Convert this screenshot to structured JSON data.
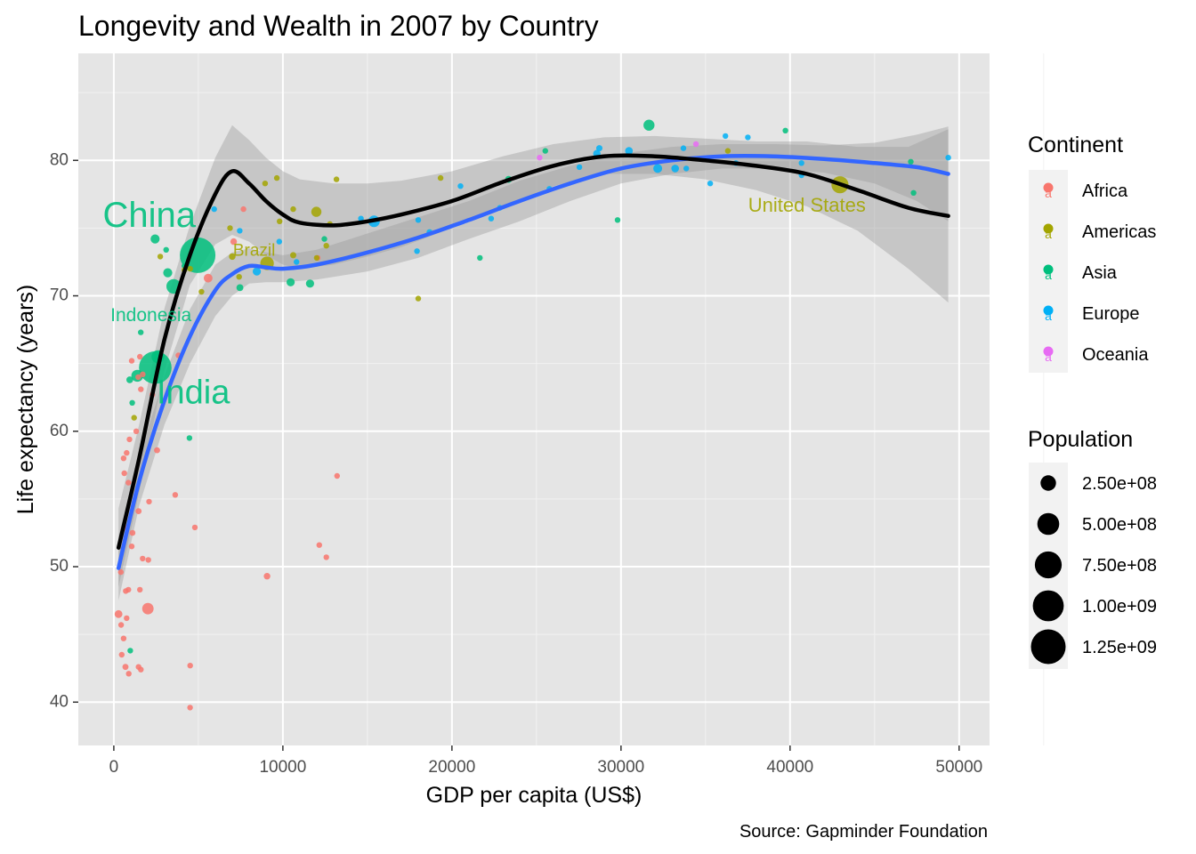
{
  "chart_data": {
    "type": "scatter",
    "title": "Longevity and Wealth in 2007 by Country",
    "xlabel": "GDP per capita (US$)",
    "ylabel": "Life expectancy (years)",
    "caption": "Source: Gapminder Foundation",
    "xlim": [
      -2100,
      51800
    ],
    "ylim": [
      36.8,
      87.9
    ],
    "x_ticks": [
      0,
      10000,
      20000,
      30000,
      40000,
      50000
    ],
    "y_ticks": [
      40,
      50,
      60,
      70,
      80
    ],
    "x_tick_labels": [
      "0",
      "10000",
      "20000",
      "30000",
      "40000",
      "50000"
    ],
    "y_tick_labels": [
      "40",
      "50",
      "60",
      "70",
      "80"
    ],
    "grid": true,
    "background": "#e5e5e5",
    "continents": [
      {
        "name": "Africa",
        "color": "#f8766d"
      },
      {
        "name": "Americas",
        "color": "#a3a500"
      },
      {
        "name": "Asia",
        "color": "#00bf7d"
      },
      {
        "name": "Europe",
        "color": "#00b0f6"
      },
      {
        "name": "Oceania",
        "color": "#e76bf3"
      }
    ],
    "legend_color_title": "Continent",
    "legend_size_title": "Population",
    "legend_key_glyph": "a",
    "size_breaks": [
      250000000,
      500000000,
      750000000,
      1000000000,
      1250000000
    ],
    "size_labels": [
      "2.50e+08",
      "5.00e+08",
      "7.50e+08",
      "1.00e+09",
      "1.25e+09"
    ],
    "points": [
      {
        "x": 4959,
        "y": 73.0,
        "c": "Asia",
        "p": 1318000000
      },
      {
        "x": 2452,
        "y": 64.7,
        "c": "Asia",
        "p": 1110000000
      },
      {
        "x": 42951,
        "y": 78.2,
        "c": "Americas",
        "p": 301000000
      },
      {
        "x": 3541,
        "y": 70.7,
        "c": "Asia",
        "p": 224000000
      },
      {
        "x": 9066,
        "y": 72.4,
        "c": "Americas",
        "p": 190000000
      },
      {
        "x": 2606,
        "y": 65.5,
        "c": "Asia",
        "p": 169000000
      },
      {
        "x": 1391,
        "y": 64.1,
        "c": "Asia",
        "p": 150000000
      },
      {
        "x": 2014,
        "y": 46.9,
        "c": "Africa",
        "p": 135000000
      },
      {
        "x": 31656,
        "y": 82.6,
        "c": "Asia",
        "p": 127000000
      },
      {
        "x": 11978,
        "y": 76.2,
        "c": "Americas",
        "p": 108000000
      },
      {
        "x": 15391,
        "y": 75.5,
        "c": "Europe",
        "p": 141000000
      },
      {
        "x": 32170,
        "y": 79.4,
        "c": "Europe",
        "p": 82400000
      },
      {
        "x": 30470,
        "y": 80.7,
        "c": "Europe",
        "p": 61100000
      },
      {
        "x": 33203,
        "y": 79.4,
        "c": "Europe",
        "p": 61000000
      },
      {
        "x": 28570,
        "y": 80.5,
        "c": "Europe",
        "p": 58100000
      },
      {
        "x": 8458,
        "y": 71.8,
        "c": "Europe",
        "p": 71200000
      },
      {
        "x": 3190,
        "y": 71.7,
        "c": "Asia",
        "p": 87000000
      },
      {
        "x": 5581,
        "y": 71.3,
        "c": "Africa",
        "p": 80200000
      },
      {
        "x": 7092,
        "y": 74.0,
        "c": "Africa",
        "p": 43997828
      },
      {
        "x": 690,
        "y": 42.6,
        "c": "Africa",
        "p": 38139640
      },
      {
        "x": 9065,
        "y": 49.3,
        "c": "Africa",
        "p": 43997828
      },
      {
        "x": 1463,
        "y": 54.1,
        "c": "Africa",
        "p": 38139640
      },
      {
        "x": 2557,
        "y": 58.6,
        "c": "Africa",
        "p": 38139640
      },
      {
        "x": 4515,
        "y": 42.7,
        "c": "Africa",
        "p": 19951656
      },
      {
        "x": 277,
        "y": 46.5,
        "c": "Africa",
        "p": 64606759
      },
      {
        "x": 10613,
        "y": 73.0,
        "c": "Americas",
        "p": 40301927
      },
      {
        "x": 7006,
        "y": 72.9,
        "c": "Americas",
        "p": 44227550
      },
      {
        "x": 36319,
        "y": 80.7,
        "c": "Americas",
        "p": 33390141
      },
      {
        "x": 12779,
        "y": 75.3,
        "c": "Americas",
        "p": 28674757
      },
      {
        "x": 7409,
        "y": 71.4,
        "c": "Americas",
        "p": 28000000
      },
      {
        "x": 1201,
        "y": 61.0,
        "c": "Americas",
        "p": 8500000
      },
      {
        "x": 4172,
        "y": 72.2,
        "c": "Asia",
        "p": 26000000
      },
      {
        "x": 3095,
        "y": 73.4,
        "c": "Asia",
        "p": 25000000
      },
      {
        "x": 2442,
        "y": 74.2,
        "c": "Asia",
        "p": 85262356
      },
      {
        "x": 1091,
        "y": 62.1,
        "c": "Asia",
        "p": 28901790
      },
      {
        "x": 944,
        "y": 63.8,
        "c": "Asia",
        "p": 47761980
      },
      {
        "x": 1593,
        "y": 67.3,
        "c": "Asia",
        "p": 23301725
      },
      {
        "x": 4472,
        "y": 59.5,
        "c": "Asia",
        "p": 22000000
      },
      {
        "x": 974,
        "y": 43.8,
        "c": "Asia",
        "p": 31889923
      },
      {
        "x": 47143,
        "y": 79.9,
        "c": "Asia",
        "p": 9000000
      },
      {
        "x": 39725,
        "y": 82.2,
        "c": "Asia",
        "p": 7000000
      },
      {
        "x": 25523,
        "y": 80.7,
        "c": "Asia",
        "p": 6426679
      },
      {
        "x": 29796,
        "y": 75.6,
        "c": "Asia",
        "p": 4000000
      },
      {
        "x": 47306,
        "y": 77.6,
        "c": "Asia",
        "p": 5000000
      },
      {
        "x": 23348,
        "y": 78.6,
        "c": "Asia",
        "p": 49044790
      },
      {
        "x": 21654,
        "y": 72.8,
        "c": "Asia",
        "p": 27601038
      },
      {
        "x": 12452,
        "y": 74.2,
        "c": "Asia",
        "p": 24821286
      },
      {
        "x": 10461,
        "y": 71.0,
        "c": "Asia",
        "p": 69453570
      },
      {
        "x": 11606,
        "y": 70.9,
        "c": "Asia",
        "p": 70000000
      },
      {
        "x": 7458,
        "y": 70.6,
        "c": "Asia",
        "p": 50000000
      },
      {
        "x": 36180,
        "y": 81.8,
        "c": "Europe",
        "p": 4000000
      },
      {
        "x": 35278,
        "y": 78.3,
        "c": "Europe",
        "p": 5000000
      },
      {
        "x": 33692,
        "y": 80.9,
        "c": "Europe",
        "p": 9000000
      },
      {
        "x": 37506,
        "y": 81.7,
        "c": "Europe",
        "p": 7500000
      },
      {
        "x": 40676,
        "y": 79.8,
        "c": "Europe",
        "p": 10000000
      },
      {
        "x": 49357,
        "y": 80.2,
        "c": "Europe",
        "p": 4600000
      },
      {
        "x": 36797,
        "y": 79.8,
        "c": "Europe",
        "p": 8200000
      },
      {
        "x": 33860,
        "y": 79.4,
        "c": "Europe",
        "p": 16570613
      },
      {
        "x": 40676,
        "y": 78.9,
        "c": "Europe",
        "p": 4100000
      },
      {
        "x": 28718,
        "y": 80.9,
        "c": "Europe",
        "p": 40448191
      },
      {
        "x": 27538,
        "y": 79.5,
        "c": "Europe",
        "p": 10700000
      },
      {
        "x": 22833,
        "y": 76.5,
        "c": "Europe",
        "p": 10228744
      },
      {
        "x": 20510,
        "y": 78.1,
        "c": "Europe",
        "p": 10642836
      },
      {
        "x": 18009,
        "y": 75.6,
        "c": "Europe",
        "p": 5447502
      },
      {
        "x": 18678,
        "y": 74.7,
        "c": "Europe",
        "p": 38518241
      },
      {
        "x": 17936,
        "y": 73.3,
        "c": "Europe",
        "p": 10000000
      },
      {
        "x": 14619,
        "y": 75.7,
        "c": "Europe",
        "p": 4400000
      },
      {
        "x": 10808,
        "y": 72.5,
        "c": "Europe",
        "p": 22276056
      },
      {
        "x": 9787,
        "y": 74.0,
        "c": "Europe",
        "p": 7322858
      },
      {
        "x": 7446,
        "y": 74.8,
        "c": "Europe",
        "p": 3600000
      },
      {
        "x": 5937,
        "y": 76.4,
        "c": "Europe",
        "p": 3000000
      },
      {
        "x": 25768,
        "y": 77.9,
        "c": "Europe",
        "p": 5400000
      },
      {
        "x": 22316,
        "y": 75.7,
        "c": "Europe",
        "p": 2000000
      },
      {
        "x": 34435,
        "y": 81.2,
        "c": "Oceania",
        "p": 20434176
      },
      {
        "x": 25185,
        "y": 80.2,
        "c": "Oceania",
        "p": 4115771
      },
      {
        "x": 13172,
        "y": 78.6,
        "c": "Americas",
        "p": 4000000
      },
      {
        "x": 9645,
        "y": 78.7,
        "c": "Americas",
        "p": 4000000
      },
      {
        "x": 8948,
        "y": 78.3,
        "c": "Americas",
        "p": 11400000
      },
      {
        "x": 19329,
        "y": 78.7,
        "c": "Americas",
        "p": 3000000
      },
      {
        "x": 18009,
        "y": 69.8,
        "c": "Americas",
        "p": 1000000
      },
      {
        "x": 10611,
        "y": 76.4,
        "c": "Americas",
        "p": 3000000
      },
      {
        "x": 9809,
        "y": 75.5,
        "c": "Americas",
        "p": 3300000
      },
      {
        "x": 6873,
        "y": 75.0,
        "c": "Americas",
        "p": 9300000
      },
      {
        "x": 12570,
        "y": 73.7,
        "c": "Americas",
        "p": 26000000
      },
      {
        "x": 5186,
        "y": 70.3,
        "c": "Americas",
        "p": 9000000
      },
      {
        "x": 2749,
        "y": 72.9,
        "c": "Americas",
        "p": 5700000
      },
      {
        "x": 4173,
        "y": 71.9,
        "c": "Americas",
        "p": 6000000
      },
      {
        "x": 4515,
        "y": 72.0,
        "c": "Americas",
        "p": 13000000
      },
      {
        "x": 12000,
        "y": 72.8,
        "c": "Americas",
        "p": 3000000
      },
      {
        "x": 3820,
        "y": 65.6,
        "c": "Africa",
        "p": 3000000
      },
      {
        "x": 7670,
        "y": 76.4,
        "c": "Africa",
        "p": 3000000
      },
      {
        "x": 12057,
        "y": 72.8,
        "c": "Africa",
        "p": 6000000
      },
      {
        "x": 13206,
        "y": 56.7,
        "c": "Africa",
        "p": 3000000
      },
      {
        "x": 12154,
        "y": 51.6,
        "c": "Africa",
        "p": 3000000
      },
      {
        "x": 12570,
        "y": 50.7,
        "c": "Africa",
        "p": 3000000
      },
      {
        "x": 4797,
        "y": 52.9,
        "c": "Africa",
        "p": 3000000
      },
      {
        "x": 4513,
        "y": 39.6,
        "c": "Africa",
        "p": 3000000
      },
      {
        "x": 3632,
        "y": 55.3,
        "c": "Africa",
        "p": 6000000
      },
      {
        "x": 2082,
        "y": 54.8,
        "c": "Africa",
        "p": 3000000
      },
      {
        "x": 1704,
        "y": 50.6,
        "c": "Africa",
        "p": 5000000
      },
      {
        "x": 2042,
        "y": 50.5,
        "c": "Africa",
        "p": 8000000
      },
      {
        "x": 1544,
        "y": 48.3,
        "c": "Africa",
        "p": 12000000
      },
      {
        "x": 863,
        "y": 48.3,
        "c": "Africa",
        "p": 12000000
      },
      {
        "x": 1107,
        "y": 52.5,
        "c": "Africa",
        "p": 35000000
      },
      {
        "x": 1057,
        "y": 51.5,
        "c": "Africa",
        "p": 10000000
      },
      {
        "x": 641,
        "y": 52.9,
        "c": "Africa",
        "p": 8000000
      },
      {
        "x": 620,
        "y": 56.9,
        "c": "Africa",
        "p": 5000000
      },
      {
        "x": 580,
        "y": 58.0,
        "c": "Africa",
        "p": 6000000
      },
      {
        "x": 759,
        "y": 58.4,
        "c": "Africa",
        "p": 11000000
      },
      {
        "x": 926,
        "y": 59.4,
        "c": "Africa",
        "p": 17000000
      },
      {
        "x": 1327,
        "y": 60.0,
        "c": "Africa",
        "p": 12000000
      },
      {
        "x": 1598,
        "y": 63.1,
        "c": "Africa",
        "p": 5000000
      },
      {
        "x": 1712,
        "y": 64.2,
        "c": "Africa",
        "p": 5000000
      },
      {
        "x": 1441,
        "y": 64.0,
        "c": "Africa",
        "p": 5000000
      },
      {
        "x": 1544,
        "y": 65.5,
        "c": "Africa",
        "p": 3000000
      },
      {
        "x": 1056,
        "y": 65.2,
        "c": "Africa",
        "p": 3000000
      },
      {
        "x": 2280,
        "y": 62.7,
        "c": "Africa",
        "p": 3000000
      },
      {
        "x": 415,
        "y": 49.6,
        "c": "Africa",
        "p": 3000000
      },
      {
        "x": 430,
        "y": 45.7,
        "c": "Africa",
        "p": 3000000
      },
      {
        "x": 706,
        "y": 48.2,
        "c": "Africa",
        "p": 6000000
      },
      {
        "x": 470,
        "y": 43.5,
        "c": "Africa",
        "p": 6000000
      },
      {
        "x": 579,
        "y": 44.7,
        "c": "Africa",
        "p": 3000000
      },
      {
        "x": 759,
        "y": 46.2,
        "c": "Africa",
        "p": 12000000
      },
      {
        "x": 883,
        "y": 42.1,
        "c": "Africa",
        "p": 14000000
      },
      {
        "x": 1463,
        "y": 42.6,
        "c": "Africa",
        "p": 3000000
      },
      {
        "x": 1598,
        "y": 42.4,
        "c": "Africa",
        "p": 3000000
      },
      {
        "x": 863,
        "y": 56.2,
        "c": "Africa",
        "p": 3000000
      }
    ],
    "labels": [
      {
        "text": "China",
        "x": 2100,
        "y": 75.8,
        "c": "Asia",
        "size": 40
      },
      {
        "text": "India",
        "x": 4700,
        "y": 62.7,
        "c": "Asia",
        "size": 38
      },
      {
        "text": "Indonesia",
        "x": 2200,
        "y": 68.5,
        "c": "Asia",
        "size": 21
      },
      {
        "text": "Brazil",
        "x": 8300,
        "y": 73.3,
        "c": "Americas",
        "size": 19
      },
      {
        "text": "United States",
        "x": 41000,
        "y": 76.6,
        "c": "Americas",
        "size": 22
      }
    ],
    "series": [
      {
        "name": "",
        "color": "#000000",
        "x": [
          277,
          1500,
          3000,
          4500,
          6000,
          7000,
          8000,
          9000,
          10000,
          11000,
          13000,
          15000,
          17000,
          20000,
          23000,
          26000,
          29000,
          32000,
          35000,
          38000,
          41000,
          44000,
          47000,
          49357
        ],
        "y": [
          51.4,
          58.0,
          66.8,
          73.0,
          77.5,
          79.2,
          78.3,
          77.0,
          76.0,
          75.4,
          75.2,
          75.5,
          76.0,
          77.0,
          78.4,
          79.6,
          80.3,
          80.3,
          80.0,
          79.6,
          79.0,
          77.8,
          76.5,
          75.9
        ],
        "ci_low": [
          48.5,
          55.5,
          64.5,
          70.8,
          73.8,
          74.5,
          74.0,
          73.0,
          72.3,
          72.0,
          72.3,
          72.9,
          73.6,
          75.0,
          76.6,
          78.1,
          79.0,
          79.0,
          78.6,
          77.8,
          76.6,
          74.8,
          72.0,
          69.5
        ],
        "ci_high": [
          54.3,
          60.5,
          69.1,
          75.2,
          80.2,
          82.6,
          81.5,
          80.2,
          79.2,
          78.6,
          78.3,
          78.3,
          78.5,
          79.2,
          80.3,
          81.2,
          81.7,
          81.8,
          81.6,
          81.4,
          81.4,
          81.0,
          81.0,
          82.3
        ]
      },
      {
        "name": "",
        "color": "#3366ff",
        "x": [
          277,
          1500,
          3000,
          4500,
          6000,
          7000,
          8000,
          9000,
          10000,
          12000,
          15000,
          18000,
          21000,
          24000,
          27000,
          30000,
          33000,
          36000,
          39000,
          42000,
          45000,
          47500,
          49357
        ],
        "y": [
          49.9,
          56.3,
          62.3,
          67.0,
          70.4,
          71.6,
          72.2,
          72.1,
          72.0,
          72.3,
          73.2,
          74.3,
          75.6,
          77.0,
          78.3,
          79.4,
          80.0,
          80.3,
          80.3,
          80.1,
          79.8,
          79.5,
          79.0
        ],
        "ci_low": [
          47.5,
          54.5,
          60.5,
          65.0,
          68.5,
          70.0,
          70.9,
          71.0,
          71.0,
          71.2,
          71.8,
          72.8,
          74.2,
          75.5,
          77.0,
          78.3,
          79.0,
          79.4,
          79.4,
          79.1,
          78.3,
          77.0,
          75.5
        ],
        "ci_high": [
          52.3,
          58.1,
          64.1,
          69.0,
          72.3,
          73.2,
          73.5,
          73.2,
          73.0,
          73.4,
          74.6,
          75.8,
          77.0,
          78.5,
          79.6,
          80.5,
          81.0,
          81.2,
          81.2,
          81.1,
          81.3,
          81.9,
          82.5
        ]
      }
    ]
  }
}
